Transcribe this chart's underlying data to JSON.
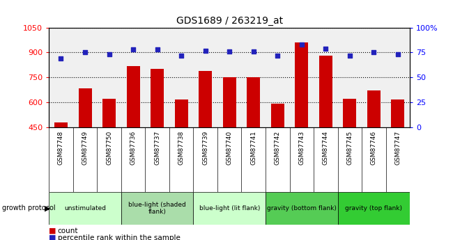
{
  "title": "GDS1689 / 263219_at",
  "samples": [
    "GSM87748",
    "GSM87749",
    "GSM87750",
    "GSM87736",
    "GSM87737",
    "GSM87738",
    "GSM87739",
    "GSM87740",
    "GSM87741",
    "GSM87742",
    "GSM87743",
    "GSM87744",
    "GSM87745",
    "GSM87746",
    "GSM87747"
  ],
  "counts": [
    480,
    685,
    620,
    820,
    800,
    615,
    790,
    750,
    750,
    590,
    960,
    880,
    620,
    670,
    615
  ],
  "percentiles": [
    69,
    75,
    73,
    78,
    78,
    72,
    77,
    76,
    76,
    72,
    83,
    79,
    72,
    75,
    73
  ],
  "bar_color": "#cc0000",
  "dot_color": "#2222bb",
  "ylim_left": [
    450,
    1050
  ],
  "ylim_right": [
    0,
    100
  ],
  "yticks_left": [
    450,
    600,
    750,
    900,
    1050
  ],
  "yticks_right": [
    0,
    25,
    50,
    75,
    100
  ],
  "groups": [
    {
      "label": "unstimulated",
      "start": 0,
      "end": 2,
      "color": "#ccffcc"
    },
    {
      "label": "blue-light (shaded\nflank)",
      "start": 3,
      "end": 5,
      "color": "#aaddaa"
    },
    {
      "label": "blue-light (lit flank)",
      "start": 6,
      "end": 8,
      "color": "#ccffcc"
    },
    {
      "label": "gravity (bottom flank)",
      "start": 9,
      "end": 11,
      "color": "#55cc55"
    },
    {
      "label": "gravity (top flank)",
      "start": 12,
      "end": 14,
      "color": "#33cc33"
    }
  ],
  "legend_count_label": "count",
  "legend_pct_label": "percentile rank within the sample",
  "growth_protocol_label": "growth protocol",
  "plot_bg": "#f0f0f0",
  "xtick_bg": "#d0d0d0"
}
